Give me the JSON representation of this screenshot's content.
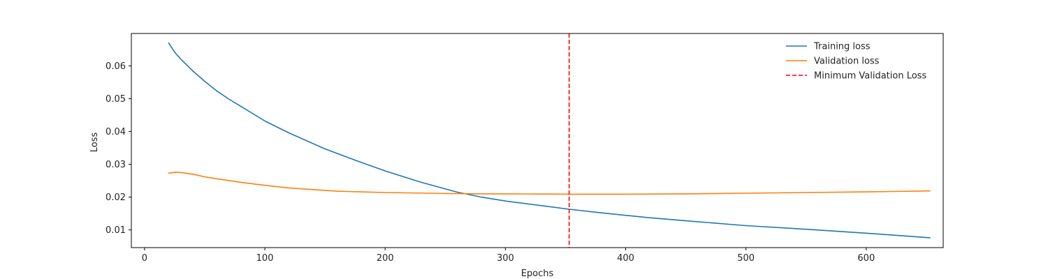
{
  "chart_data": {
    "type": "line",
    "title": "",
    "xlabel": "Epochs",
    "ylabel": "Loss",
    "xlim": [
      -11,
      664
    ],
    "ylim": [
      0.0046,
      0.0699
    ],
    "x_ticks": [
      0,
      100,
      200,
      300,
      400,
      500,
      600
    ],
    "y_ticks": [
      0.01,
      0.02,
      0.03,
      0.04,
      0.05,
      0.06
    ],
    "grid": false,
    "legend_position": "top-right",
    "series": [
      {
        "name": "Training loss",
        "color": "#1f77b4",
        "x": [
          20,
          25,
          30,
          40,
          50,
          60,
          70,
          80,
          100,
          120,
          150,
          180,
          200,
          230,
          260,
          280,
          300,
          330,
          353,
          380,
          420,
          460,
          500,
          550,
          600,
          653
        ],
        "y": [
          0.067,
          0.0642,
          0.0621,
          0.0585,
          0.0553,
          0.0524,
          0.0499,
          0.0477,
          0.0432,
          0.0396,
          0.0347,
          0.0306,
          0.028,
          0.0245,
          0.0215,
          0.02,
          0.0188,
          0.0174,
          0.0163,
          0.0152,
          0.0137,
          0.0125,
          0.0113,
          0.0102,
          0.009,
          0.0076
        ]
      },
      {
        "name": "Validation loss",
        "color": "#ff7f0e",
        "x": [
          20,
          25,
          30,
          40,
          50,
          60,
          80,
          100,
          120,
          140,
          160,
          180,
          200,
          250,
          280,
          300,
          353,
          400,
          450,
          500,
          550,
          600,
          653
        ],
        "y": [
          0.0273,
          0.0276,
          0.0275,
          0.027,
          0.0262,
          0.0256,
          0.0245,
          0.0236,
          0.0228,
          0.0223,
          0.0218,
          0.0216,
          0.0214,
          0.0211,
          0.021,
          0.021,
          0.0209,
          0.0209,
          0.021,
          0.0212,
          0.0214,
          0.0216,
          0.0219
        ]
      },
      {
        "name": "Minimum Validation Loss",
        "color": "#ff0000",
        "style": "dashed",
        "vline_x": 353
      }
    ]
  }
}
